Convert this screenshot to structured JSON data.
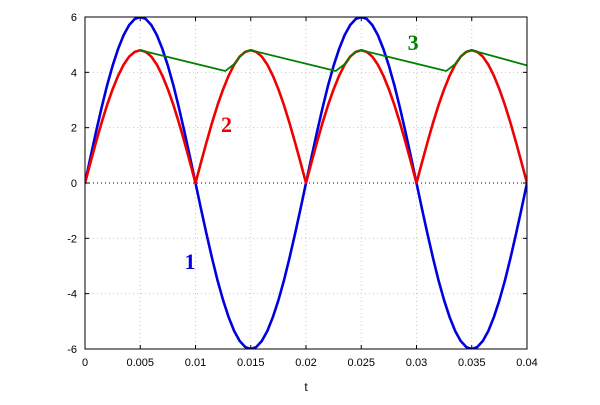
{
  "chart_data": {
    "type": "line",
    "xlabel": "t",
    "ylabel": "",
    "xlim": [
      0,
      0.04
    ],
    "ylim": [
      -6,
      6
    ],
    "grid": true,
    "zero_line": true,
    "x_ticks": [
      0,
      0.005,
      0.01,
      0.015,
      0.02,
      0.025,
      0.03,
      0.035,
      0.04
    ],
    "x_tick_labels": [
      "0",
      "0.005",
      "0.01",
      "0.015",
      "0.02",
      "0.025",
      "0.03",
      "0.035",
      "0.04"
    ],
    "y_ticks": [
      -6,
      -4,
      -2,
      0,
      2,
      4,
      6
    ],
    "y_tick_labels": [
      "-6",
      "-4",
      "-2",
      "0",
      "2",
      "4",
      "6"
    ],
    "series": [
      {
        "label": "1",
        "color": "#0000e0",
        "label_at": [
          0.0095,
          -3.1
        ],
        "x": [
          0,
          0.0005,
          0.001,
          0.0015,
          0.002,
          0.0025,
          0.003,
          0.0035,
          0.004,
          0.0045,
          0.005,
          0.0055,
          0.006,
          0.0065,
          0.007,
          0.0075,
          0.008,
          0.0085,
          0.009,
          0.0095,
          0.01,
          0.0105,
          0.011,
          0.0115,
          0.012,
          0.0125,
          0.013,
          0.0135,
          0.014,
          0.0145,
          0.015,
          0.0155,
          0.016,
          0.0165,
          0.017,
          0.0175,
          0.018,
          0.0185,
          0.019,
          0.0195,
          0.02,
          0.0205,
          0.021,
          0.0215,
          0.022,
          0.0225,
          0.023,
          0.0235,
          0.024,
          0.0245,
          0.025,
          0.0255,
          0.026,
          0.0265,
          0.027,
          0.0275,
          0.028,
          0.0285,
          0.029,
          0.0295,
          0.03,
          0.0305,
          0.031,
          0.0315,
          0.032,
          0.0325,
          0.033,
          0.0335,
          0.034,
          0.0345,
          0.035,
          0.0355,
          0.036,
          0.0365,
          0.037,
          0.0375,
          0.038,
          0.0385,
          0.039,
          0.0395,
          0.04
        ],
        "y": [
          0,
          0.94,
          1.85,
          2.72,
          3.53,
          4.24,
          4.85,
          5.35,
          5.71,
          5.93,
          6,
          5.93,
          5.71,
          5.35,
          4.85,
          4.24,
          3.53,
          2.72,
          1.85,
          0.94,
          0,
          -0.94,
          -1.85,
          -2.72,
          -3.53,
          -4.24,
          -4.85,
          -5.35,
          -5.71,
          -5.93,
          -6,
          -5.93,
          -5.71,
          -5.35,
          -4.85,
          -4.24,
          -3.53,
          -2.72,
          -1.85,
          -0.94,
          0,
          0.94,
          1.85,
          2.72,
          3.53,
          4.24,
          4.85,
          5.35,
          5.71,
          5.93,
          6,
          5.93,
          5.71,
          5.35,
          4.85,
          4.24,
          3.53,
          2.72,
          1.85,
          0.94,
          0,
          -0.94,
          -1.85,
          -2.72,
          -3.53,
          -4.24,
          -4.85,
          -5.35,
          -5.71,
          -5.93,
          -6,
          -5.93,
          -5.71,
          -5.35,
          -4.85,
          -4.24,
          -3.53,
          -2.72,
          -1.85,
          -0.94,
          0
        ]
      },
      {
        "label": "2",
        "color": "#f00000",
        "label_at": [
          0.0128,
          1.85
        ],
        "x": [
          0,
          0.0005,
          0.001,
          0.0015,
          0.002,
          0.0025,
          0.003,
          0.0035,
          0.004,
          0.0045,
          0.005,
          0.0055,
          0.006,
          0.0065,
          0.007,
          0.0075,
          0.008,
          0.0085,
          0.009,
          0.0095,
          0.01,
          0.0105,
          0.011,
          0.0115,
          0.012,
          0.0125,
          0.013,
          0.0135,
          0.014,
          0.0145,
          0.015,
          0.0155,
          0.016,
          0.0165,
          0.017,
          0.0175,
          0.018,
          0.0185,
          0.019,
          0.0195,
          0.02,
          0.0205,
          0.021,
          0.0215,
          0.022,
          0.0225,
          0.023,
          0.0235,
          0.024,
          0.0245,
          0.025,
          0.0255,
          0.026,
          0.0265,
          0.027,
          0.0275,
          0.028,
          0.0285,
          0.029,
          0.0295,
          0.03,
          0.0305,
          0.031,
          0.0315,
          0.032,
          0.0325,
          0.033,
          0.0335,
          0.034,
          0.0345,
          0.035,
          0.0355,
          0.036,
          0.0365,
          0.037,
          0.0375,
          0.038,
          0.0385,
          0.039,
          0.0395,
          0.04
        ],
        "y": [
          0,
          0.75,
          1.48,
          2.18,
          2.82,
          3.39,
          3.88,
          4.28,
          4.57,
          4.74,
          4.8,
          4.74,
          4.57,
          4.28,
          3.88,
          3.39,
          2.82,
          2.18,
          1.48,
          0.75,
          0,
          0.75,
          1.48,
          2.18,
          2.82,
          3.39,
          3.88,
          4.28,
          4.57,
          4.74,
          4.8,
          4.74,
          4.57,
          4.28,
          3.88,
          3.39,
          2.82,
          2.18,
          1.48,
          0.75,
          0,
          0.75,
          1.48,
          2.18,
          2.82,
          3.39,
          3.88,
          4.28,
          4.57,
          4.74,
          4.8,
          4.74,
          4.57,
          4.28,
          3.88,
          3.39,
          2.82,
          2.18,
          1.48,
          0.75,
          0,
          0.75,
          1.48,
          2.18,
          2.82,
          3.39,
          3.88,
          4.28,
          4.57,
          4.74,
          4.8,
          4.74,
          4.57,
          4.28,
          3.88,
          3.39,
          2.82,
          2.18,
          1.48,
          0.75,
          0
        ]
      },
      {
        "label": "3",
        "color": "#008000",
        "label_at": [
          0.0297,
          4.8
        ],
        "x": [
          0.005,
          0.0127,
          0.0135,
          0.014,
          0.0145,
          0.015,
          0.0227,
          0.0235,
          0.024,
          0.0245,
          0.025,
          0.0327,
          0.0335,
          0.034,
          0.0345,
          0.035,
          0.04
        ],
        "y": [
          4.8,
          4.05,
          4.3,
          4.57,
          4.74,
          4.8,
          4.05,
          4.3,
          4.57,
          4.74,
          4.8,
          4.05,
          4.3,
          4.57,
          4.74,
          4.8,
          4.25
        ]
      }
    ]
  }
}
